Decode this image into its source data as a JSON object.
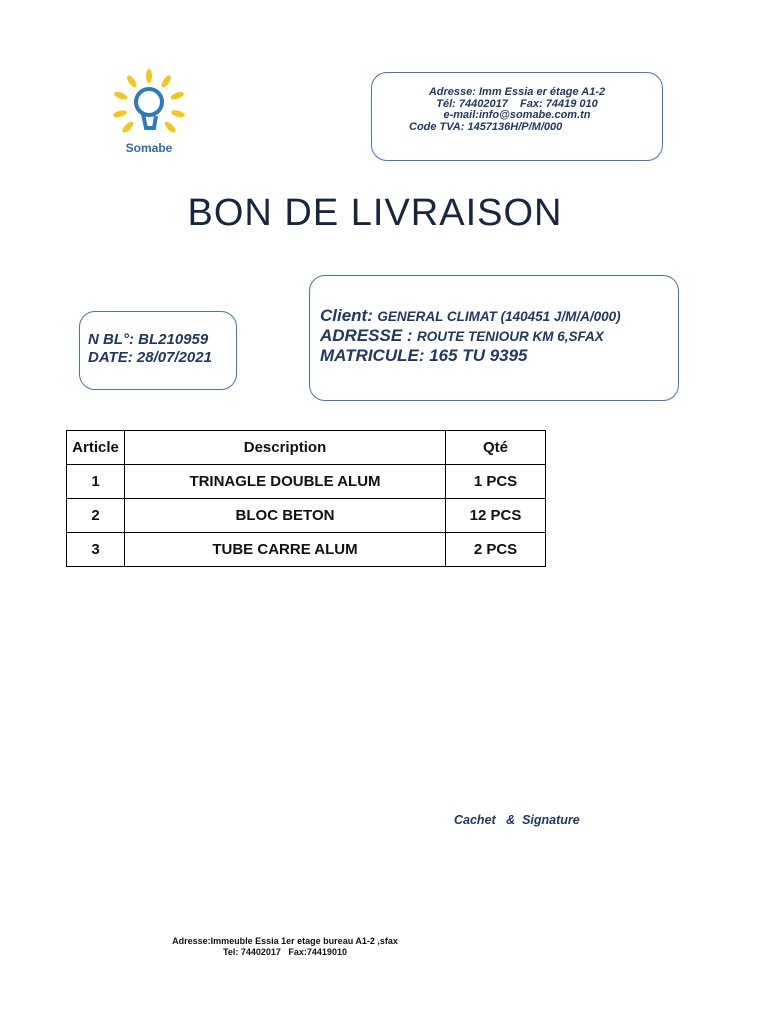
{
  "company": {
    "logo_text": "Somabe",
    "colors": {
      "ray": "#f5c518",
      "bulb": "#2b7bbf"
    }
  },
  "header_box": {
    "lines": [
      "Adresse: Imm Essia er étage A1-2",
      "Tél: 74402017    Fax: 74419 010",
      "e-mail:info@somabe.com.tn",
      "Code TVA: 1457136H/P/M/000"
    ]
  },
  "title": "BON DE LIVRAISON",
  "bl": {
    "number": "N BL°: BL210959",
    "date": "DATE: 28/07/2021"
  },
  "client": {
    "client_label": "Client:",
    "client_value": "GENERAL CLIMAT (140451 J/M/A/000)",
    "address_label": "ADRESSE :",
    "address_value": "ROUTE TENIOUR KM 6,SFAX",
    "matricule": "MATRICULE: 165 TU 9395"
  },
  "table": {
    "headers": [
      "Article",
      "Description",
      "Qté"
    ],
    "rows": [
      [
        "1",
        "TRINAGLE DOUBLE ALUM",
        "1 PCS"
      ],
      [
        "2",
        "BLOC BETON",
        "12 PCS"
      ],
      [
        "3",
        "TUBE CARRE ALUM",
        "2 PCS"
      ]
    ]
  },
  "cachet": "Cachet   &  Signature",
  "footer": {
    "lines": [
      "Adresse:Immeuble Essia 1er etage bureau A1-2 ,sfax",
      "Tel: 74402017   Fax:74419010"
    ]
  }
}
